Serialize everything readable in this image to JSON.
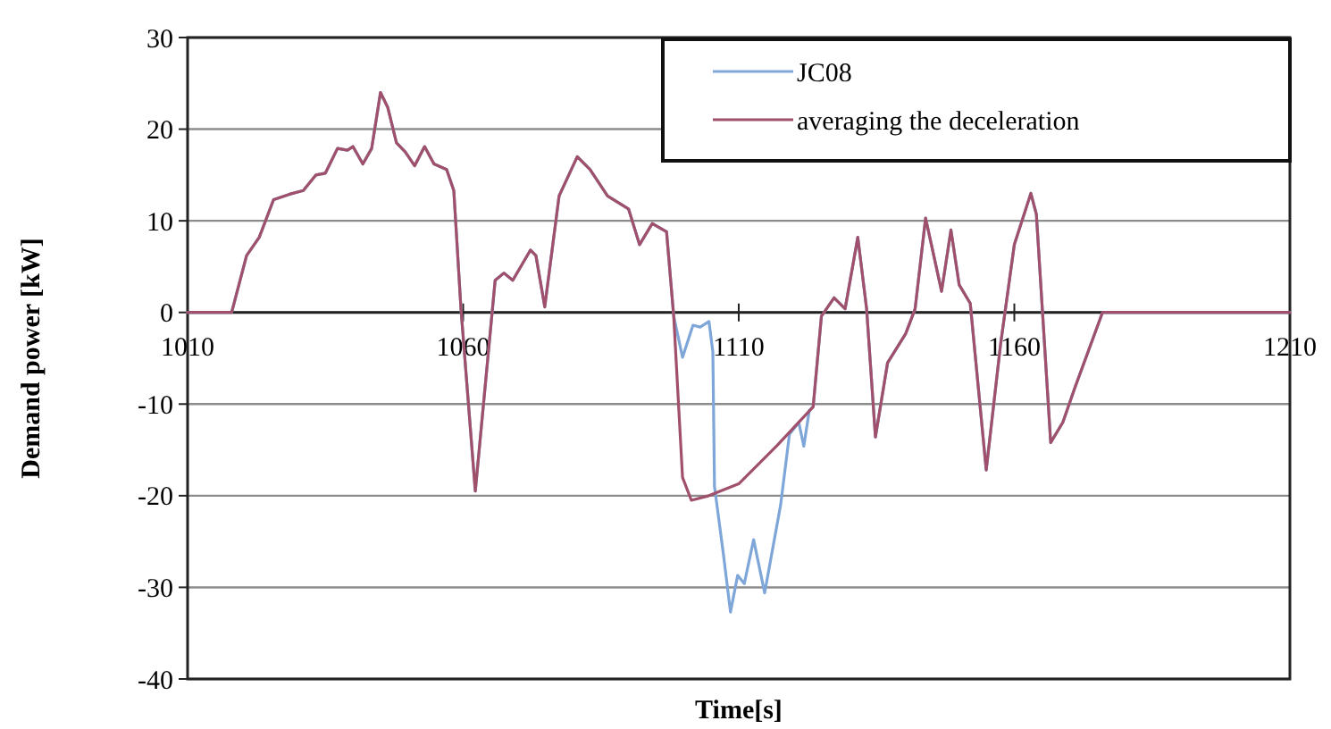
{
  "chart_data": {
    "type": "line",
    "xlabel": "Time[s]",
    "ylabel": "Demand power [kW]",
    "xlim": [
      1010,
      1210
    ],
    "xticks": [
      1010,
      1060,
      1110,
      1160,
      1210
    ],
    "ylim": [
      -40,
      30
    ],
    "yticks": [
      -40,
      -30,
      -20,
      -10,
      0,
      10,
      20,
      30
    ],
    "grid": "y",
    "legend": "top right",
    "marker": "none",
    "line_style": "solid",
    "series": [
      {
        "name": "JC08",
        "color": "#7ea6d8",
        "x": [
          1010,
          1018,
          1020.7,
          1023,
          1025.6,
          1028.5,
          1031,
          1033.3,
          1035,
          1037.2,
          1039,
          1040,
          1041.8,
          1043.4,
          1045,
          1046.3,
          1047.9,
          1049.5,
          1051.2,
          1053,
          1054.7,
          1057,
          1058.3,
          1059.6,
          1062.2,
          1065.8,
          1067.4,
          1069,
          1072.2,
          1073.2,
          1074.8,
          1077.4,
          1080.7,
          1083,
          1086.2,
          1090,
          1092,
          1094.3,
          1096.9,
          1098.2,
          1099.8,
          1101.7,
          1103,
          1104.6,
          1105.3,
          1105.6,
          1107.2,
          1108.5,
          1109.8,
          1111,
          1112.7,
          1114.7,
          1117.6,
          1119.2,
          1120.9,
          1121.8,
          1122.8,
          1123.5,
          1125,
          1127.3,
          1129.3,
          1131.6,
          1133.2,
          1134.8,
          1137,
          1140.3,
          1142,
          1143.9,
          1146.8,
          1148.5,
          1150,
          1152,
          1154.9,
          1157.5,
          1160,
          1163,
          1164,
          1166.6,
          1168.8,
          1171,
          1176,
          1210
        ],
        "values": [
          0,
          0,
          6.2,
          8.2,
          12.3,
          12.9,
          13.3,
          15,
          15.2,
          17.9,
          17.7,
          18.1,
          16.2,
          17.9,
          24,
          22.4,
          18.5,
          17.5,
          16,
          18.1,
          16.2,
          15.6,
          13.3,
          0.4,
          -19.5,
          3.5,
          4.3,
          3.5,
          6.8,
          6.2,
          0.6,
          12.7,
          17,
          15.6,
          12.7,
          11.3,
          7.4,
          9.7,
          8.8,
          -0.4,
          -4.9,
          -1.4,
          -1.6,
          -1,
          -4.3,
          -19,
          -26.3,
          -32.7,
          -28.7,
          -29.6,
          -24.8,
          -30.6,
          -21,
          -13.3,
          -12,
          -14.6,
          -10.7,
          -10.3,
          -0.4,
          1.6,
          0.4,
          8.2,
          0.4,
          -13.6,
          -5.5,
          -2.3,
          0.4,
          10.3,
          2.3,
          9,
          3,
          1,
          -17.2,
          -3.5,
          7.4,
          13,
          10.7,
          -14.2,
          -12,
          -8.2,
          0,
          0
        ]
      },
      {
        "name": "averaging the deceleration",
        "color": "#a0506a",
        "x": [
          1010,
          1018,
          1020.7,
          1023,
          1025.6,
          1028.5,
          1031,
          1033.3,
          1035,
          1037.2,
          1039,
          1040,
          1041.8,
          1043.4,
          1045,
          1046.3,
          1047.9,
          1049.5,
          1051.2,
          1053,
          1054.7,
          1057,
          1058.3,
          1059.6,
          1062.2,
          1065.8,
          1067.4,
          1069,
          1072.2,
          1073.2,
          1074.8,
          1077.4,
          1080.7,
          1083,
          1086.2,
          1090,
          1092,
          1094.3,
          1096.9,
          1098.2,
          1099.8,
          1101.4,
          1104.6,
          1110,
          1117,
          1123.5,
          1125,
          1127.3,
          1129.3,
          1131.6,
          1133.2,
          1134.8,
          1137,
          1140.3,
          1142,
          1143.9,
          1146.8,
          1148.5,
          1150,
          1152,
          1154.9,
          1157.5,
          1160,
          1163,
          1164,
          1166.6,
          1168.8,
          1171,
          1176,
          1210
        ],
        "values": [
          0,
          0,
          6.2,
          8.2,
          12.3,
          12.9,
          13.3,
          15,
          15.2,
          17.9,
          17.7,
          18.1,
          16.2,
          17.9,
          24,
          22.4,
          18.5,
          17.5,
          16,
          18.1,
          16.2,
          15.6,
          13.3,
          0.4,
          -19.5,
          3.5,
          4.3,
          3.5,
          6.8,
          6.2,
          0.6,
          12.7,
          17,
          15.6,
          12.7,
          11.3,
          7.4,
          9.7,
          8.8,
          -0.4,
          -18,
          -20.5,
          -20,
          -18.7,
          -14.5,
          -10.3,
          -0.4,
          1.6,
          0.4,
          8.2,
          0.4,
          -13.6,
          -5.5,
          -2.3,
          0.4,
          10.3,
          2.3,
          9,
          3,
          1,
          -17.2,
          -3.5,
          7.4,
          13,
          10.7,
          -14.2,
          -12,
          -8.2,
          0,
          0
        ]
      }
    ]
  }
}
